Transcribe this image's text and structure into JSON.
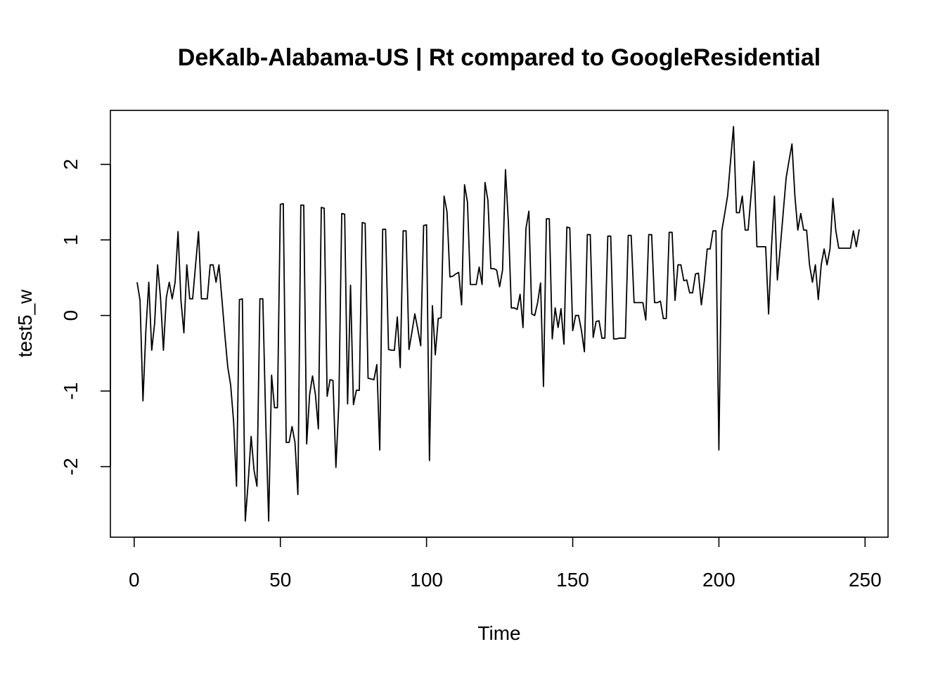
{
  "chart_data": {
    "type": "line",
    "title": "DeKalb-Alabama-US | Rt compared to GoogleResidential",
    "xlabel": "Time",
    "ylabel": "test5_w",
    "xlim": [
      1,
      248
    ],
    "ylim": [
      -2.72,
      2.5
    ],
    "xticks": [
      0,
      50,
      100,
      150,
      200,
      250
    ],
    "yticks": [
      -2,
      -1,
      0,
      1,
      2
    ],
    "grid": false,
    "series": [
      {
        "x_start": 1,
        "values": [
          0.44,
          0.2,
          -1.13,
          -0.2,
          0.44,
          -0.46,
          -0.1,
          0.67,
          0.24,
          -0.46,
          0.24,
          0.44,
          0.22,
          0.44,
          1.11,
          0.2,
          -0.23,
          0.67,
          0.22,
          0.22,
          0.67,
          1.11,
          0.22,
          0.22,
          0.22,
          0.67,
          0.67,
          0.44,
          0.67,
          0.22,
          -0.25,
          -0.68,
          -0.92,
          -1.4,
          -2.26,
          0.21,
          0.22,
          -2.72,
          -2.2,
          -1.6,
          -2.05,
          -2.26,
          0.22,
          0.22,
          -1.4,
          -2.72,
          -0.79,
          -1.22,
          -1.22,
          1.47,
          1.48,
          -1.68,
          -1.68,
          -1.47,
          -1.68,
          -2.37,
          1.46,
          1.46,
          -1.7,
          -1.05,
          -0.8,
          -1.05,
          -1.5,
          1.43,
          1.42,
          -1.07,
          -0.85,
          -0.86,
          -2.01,
          -1.17,
          1.35,
          1.34,
          -1.17,
          0.4,
          -1.18,
          -0.99,
          -0.99,
          1.23,
          1.22,
          -0.83,
          -0.84,
          -0.85,
          -0.65,
          -1.78,
          1.14,
          1.14,
          -0.45,
          -0.46,
          -0.46,
          -0.02,
          -0.69,
          1.12,
          1.12,
          -0.45,
          -0.22,
          0.02,
          -0.18,
          -0.4,
          1.19,
          1.2,
          -1.92,
          0.13,
          -0.52,
          -0.04,
          -0.03,
          1.58,
          1.37,
          0.51,
          0.52,
          0.55,
          0.57,
          0.14,
          1.73,
          1.5,
          0.41,
          0.41,
          0.41,
          0.64,
          0.41,
          1.76,
          1.52,
          0.62,
          0.62,
          0.6,
          0.38,
          0.6,
          1.93,
          1.23,
          0.1,
          0.1,
          0.08,
          0.28,
          -0.16,
          1.15,
          1.38,
          0.02,
          0.0,
          0.17,
          0.43,
          -0.94,
          1.28,
          1.28,
          -0.31,
          0.1,
          -0.16,
          0.09,
          -0.38,
          1.17,
          1.16,
          -0.2,
          0.0,
          0.0,
          -0.2,
          -0.48,
          1.07,
          1.07,
          -0.29,
          -0.08,
          -0.07,
          -0.3,
          -0.3,
          1.05,
          1.05,
          -0.31,
          -0.31,
          -0.3,
          -0.3,
          -0.3,
          1.06,
          1.06,
          0.17,
          0.17,
          0.17,
          0.17,
          -0.06,
          1.07,
          1.07,
          0.17,
          0.17,
          0.19,
          -0.04,
          -0.04,
          1.1,
          1.1,
          0.2,
          0.67,
          0.67,
          0.46,
          0.47,
          0.3,
          0.3,
          0.55,
          0.56,
          0.14,
          0.45,
          0.88,
          0.88,
          1.12,
          1.12,
          -1.78,
          1.12,
          1.35,
          1.59,
          2.05,
          2.5,
          1.36,
          1.36,
          1.58,
          1.13,
          1.13,
          1.59,
          2.04,
          0.91,
          0.91,
          0.91,
          0.91,
          0.02,
          0.91,
          1.58,
          0.47,
          0.9,
          1.36,
          1.82,
          2.05,
          2.27,
          1.58,
          1.13,
          1.35,
          1.13,
          1.13,
          0.67,
          0.44,
          0.67,
          0.21,
          0.67,
          0.88,
          0.67,
          0.88,
          1.55,
          1.12,
          0.89,
          0.89,
          0.89,
          0.89,
          0.89,
          1.12,
          0.91,
          1.14
        ]
      }
    ]
  }
}
